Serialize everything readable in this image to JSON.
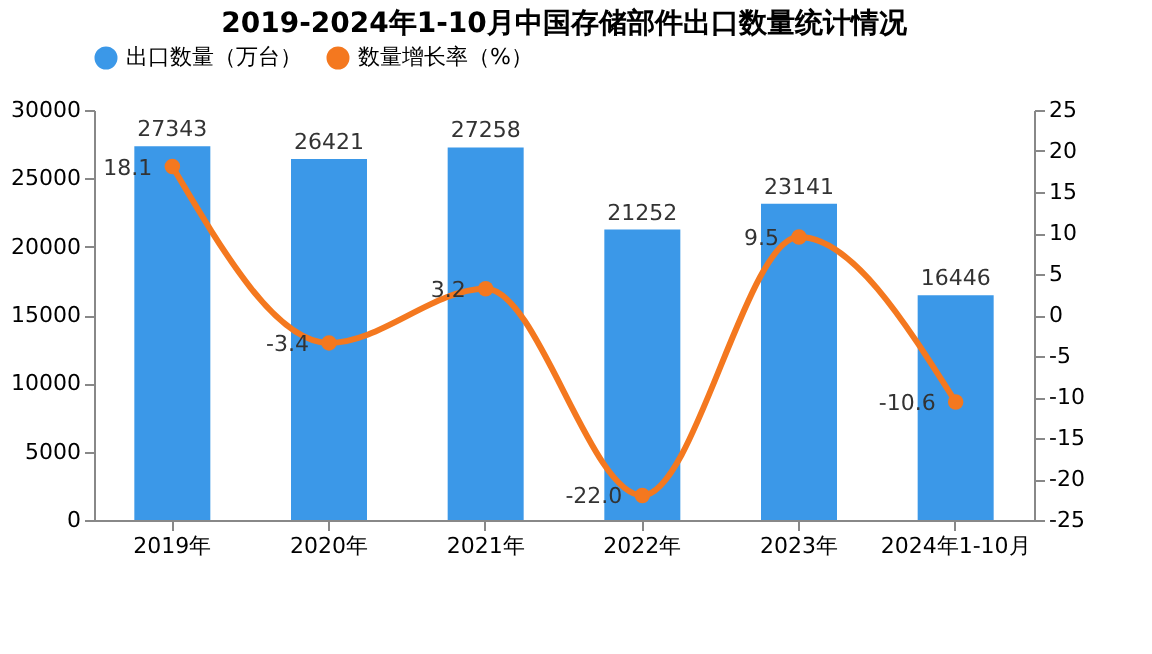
{
  "chart_data": {
    "type": "bar",
    "title": "2019-2024年1-10月中国存储部件出口数量统计情况",
    "categories": [
      "2019年",
      "2020年",
      "2021年",
      "2022年",
      "2023年",
      "2024年1-10月"
    ],
    "series": [
      {
        "name": "出口数量（万台）",
        "color": "#3b98e8",
        "values": [
          27343,
          26421,
          27258,
          21252,
          23141,
          16446
        ],
        "value_labels": [
          "27343",
          "26421",
          "27258",
          "21252",
          "23141",
          "16446"
        ]
      },
      {
        "name": "数量增长率（%）",
        "type": "line",
        "axis": "y2",
        "color": "#f4781f",
        "values": [
          18.1,
          -3.4,
          3.2,
          -22.0,
          9.5,
          -10.6
        ],
        "value_labels": [
          "18.1",
          "-3.4",
          "3.2",
          "-22.0",
          "9.5",
          "-10.6"
        ]
      }
    ],
    "ylim": [
      0,
      30000
    ],
    "yticks": [
      0,
      5000,
      10000,
      15000,
      20000,
      25000,
      30000
    ],
    "y2lim": [
      -25,
      25
    ],
    "y2ticks": [
      -25,
      -20,
      -15,
      -10,
      -5,
      0,
      5,
      10,
      15,
      20,
      25
    ],
    "legend": "top",
    "marker": "circle",
    "grid": false
  }
}
